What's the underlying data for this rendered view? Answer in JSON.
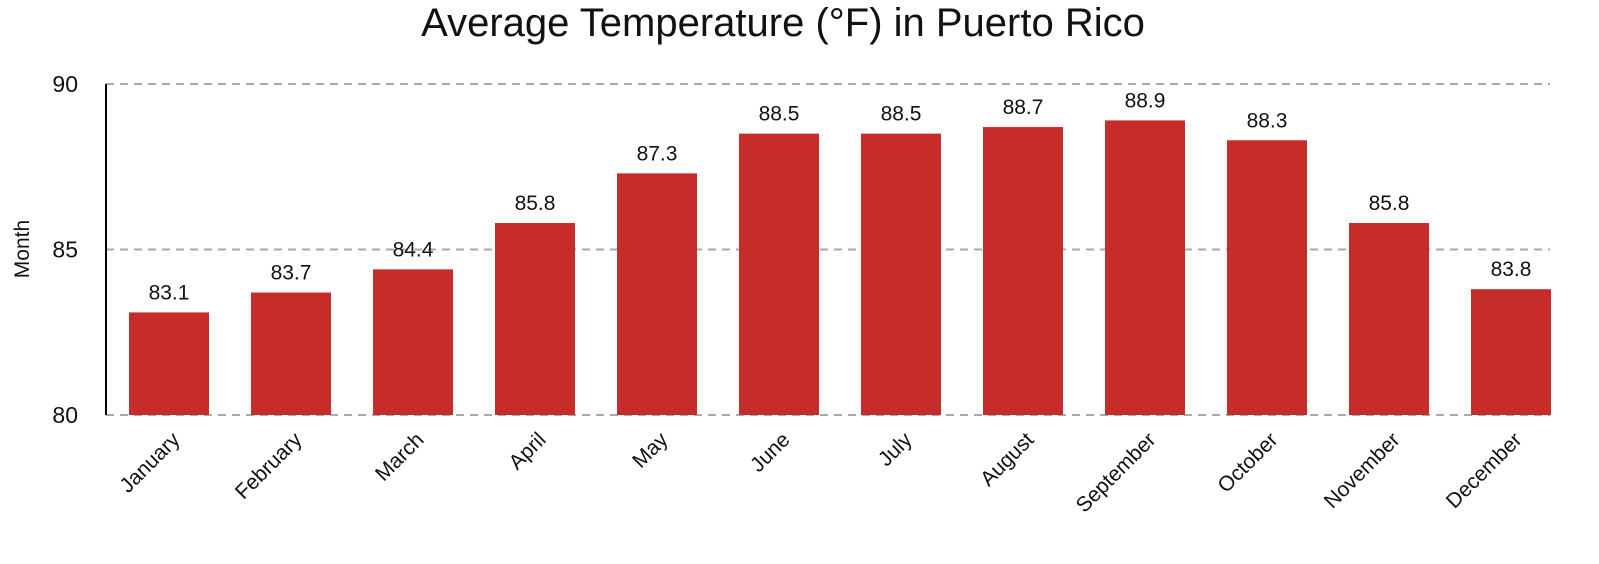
{
  "chart_data": {
    "type": "bar",
    "title": "Average Temperature (°F) in Puerto Rico",
    "xlabel": "",
    "ylabel": "Month",
    "ylim": [
      80,
      90
    ],
    "yticks": [
      80,
      85,
      90
    ],
    "grid": true,
    "grid_style": "dashed-horizontal",
    "bar_color": "#C62D2A",
    "categories": [
      "January",
      "February",
      "March",
      "April",
      "May",
      "June",
      "July",
      "August",
      "September",
      "October",
      "November",
      "December"
    ],
    "values": [
      83.1,
      83.7,
      84.4,
      85.8,
      87.3,
      88.5,
      88.5,
      88.7,
      88.9,
      88.3,
      85.8,
      83.8
    ],
    "data_labels": [
      "83.1",
      "83.7",
      "84.4",
      "85.8",
      "87.3",
      "88.5",
      "88.5",
      "88.7",
      "88.9",
      "88.3",
      "85.8",
      "83.8"
    ]
  }
}
